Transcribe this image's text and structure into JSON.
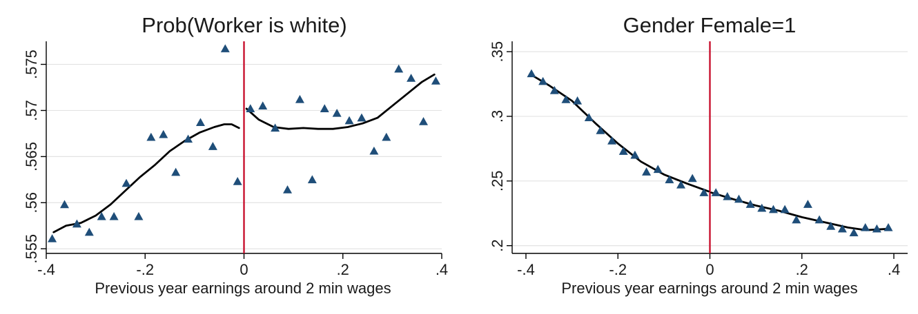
{
  "colors": {
    "marker": "#1f4e79",
    "fit_line": "#000000",
    "cutoff_line": "#c8102e",
    "grid": "#e3e3e3"
  },
  "chart_data": [
    {
      "type": "scatter",
      "title": "Prob(Worker is white)",
      "xlabel": "Previous year earnings around 2 min wages",
      "ylabel": "",
      "xlim": [
        -0.4,
        0.4
      ],
      "ylim": [
        0.5545,
        0.5775
      ],
      "xticks": [
        -0.4,
        -0.2,
        0,
        0.2,
        0.4
      ],
      "xtick_labels": [
        "-.4",
        "-.2",
        "0",
        ".2",
        ".4"
      ],
      "yticks": [
        0.555,
        0.56,
        0.565,
        0.57,
        0.575
      ],
      "ytick_labels": [
        ".555",
        ".56",
        ".565",
        ".57",
        ".575"
      ],
      "grid": true,
      "cutoff": 0,
      "marker": "triangle",
      "points": [
        {
          "x": -0.388,
          "y": 0.5561
        },
        {
          "x": -0.363,
          "y": 0.5598
        },
        {
          "x": -0.338,
          "y": 0.5577
        },
        {
          "x": -0.313,
          "y": 0.5568
        },
        {
          "x": -0.288,
          "y": 0.5585
        },
        {
          "x": -0.263,
          "y": 0.5585
        },
        {
          "x": -0.238,
          "y": 0.5621
        },
        {
          "x": -0.213,
          "y": 0.5585
        },
        {
          "x": -0.188,
          "y": 0.5671
        },
        {
          "x": -0.163,
          "y": 0.5674
        },
        {
          "x": -0.138,
          "y": 0.5633
        },
        {
          "x": -0.113,
          "y": 0.5669
        },
        {
          "x": -0.088,
          "y": 0.5687
        },
        {
          "x": -0.063,
          "y": 0.5661
        },
        {
          "x": -0.038,
          "y": 0.5767
        },
        {
          "x": -0.013,
          "y": 0.5623
        },
        {
          "x": 0.013,
          "y": 0.5702
        },
        {
          "x": 0.038,
          "y": 0.5705
        },
        {
          "x": 0.063,
          "y": 0.5681
        },
        {
          "x": 0.088,
          "y": 0.5614
        },
        {
          "x": 0.113,
          "y": 0.5712
        },
        {
          "x": 0.138,
          "y": 0.5625
        },
        {
          "x": 0.163,
          "y": 0.5702
        },
        {
          "x": 0.188,
          "y": 0.5697
        },
        {
          "x": 0.213,
          "y": 0.5689
        },
        {
          "x": 0.238,
          "y": 0.5692
        },
        {
          "x": 0.263,
          "y": 0.5656
        },
        {
          "x": 0.288,
          "y": 0.5671
        },
        {
          "x": 0.313,
          "y": 0.5745
        },
        {
          "x": 0.338,
          "y": 0.5735
        },
        {
          "x": 0.363,
          "y": 0.5688
        },
        {
          "x": 0.388,
          "y": 0.5732
        }
      ],
      "fit_left": [
        {
          "x": -0.385,
          "y": 0.5568
        },
        {
          "x": -0.36,
          "y": 0.5575
        },
        {
          "x": -0.33,
          "y": 0.5578
        },
        {
          "x": -0.3,
          "y": 0.5586
        },
        {
          "x": -0.27,
          "y": 0.5598
        },
        {
          "x": -0.24,
          "y": 0.5613
        },
        {
          "x": -0.21,
          "y": 0.5628
        },
        {
          "x": -0.18,
          "y": 0.5641
        },
        {
          "x": -0.15,
          "y": 0.5656
        },
        {
          "x": -0.12,
          "y": 0.5667
        },
        {
          "x": -0.09,
          "y": 0.5676
        },
        {
          "x": -0.06,
          "y": 0.5682
        },
        {
          "x": -0.04,
          "y": 0.5685
        },
        {
          "x": -0.025,
          "y": 0.5685
        },
        {
          "x": -0.01,
          "y": 0.5681
        }
      ],
      "fit_right": [
        {
          "x": 0.005,
          "y": 0.5702
        },
        {
          "x": 0.03,
          "y": 0.569
        },
        {
          "x": 0.06,
          "y": 0.5682
        },
        {
          "x": 0.09,
          "y": 0.568
        },
        {
          "x": 0.12,
          "y": 0.5681
        },
        {
          "x": 0.15,
          "y": 0.568
        },
        {
          "x": 0.18,
          "y": 0.568
        },
        {
          "x": 0.21,
          "y": 0.5682
        },
        {
          "x": 0.24,
          "y": 0.5686
        },
        {
          "x": 0.27,
          "y": 0.5692
        },
        {
          "x": 0.3,
          "y": 0.5705
        },
        {
          "x": 0.33,
          "y": 0.5718
        },
        {
          "x": 0.36,
          "y": 0.5731
        },
        {
          "x": 0.385,
          "y": 0.5739
        }
      ]
    },
    {
      "type": "scatter",
      "title": "Gender Female=1",
      "xlabel": "Previous year earnings around 2 min wages",
      "ylabel": "",
      "xlim": [
        -0.43,
        0.43
      ],
      "ylim": [
        0.194,
        0.358
      ],
      "xticks": [
        -0.4,
        -0.2,
        0,
        0.2,
        0.4
      ],
      "xtick_labels": [
        "-.4",
        "-.2",
        "0",
        ".2",
        ".4"
      ],
      "yticks": [
        0.2,
        0.25,
        0.3,
        0.35
      ],
      "ytick_labels": [
        ".2",
        ".25",
        ".3",
        ".35"
      ],
      "grid": true,
      "cutoff": 0,
      "marker": "triangle",
      "points": [
        {
          "x": -0.388,
          "y": 0.333
        },
        {
          "x": -0.363,
          "y": 0.327
        },
        {
          "x": -0.338,
          "y": 0.32
        },
        {
          "x": -0.313,
          "y": 0.313
        },
        {
          "x": -0.288,
          "y": 0.312
        },
        {
          "x": -0.263,
          "y": 0.299
        },
        {
          "x": -0.238,
          "y": 0.289
        },
        {
          "x": -0.213,
          "y": 0.281
        },
        {
          "x": -0.188,
          "y": 0.273
        },
        {
          "x": -0.163,
          "y": 0.27
        },
        {
          "x": -0.138,
          "y": 0.257
        },
        {
          "x": -0.113,
          "y": 0.259
        },
        {
          "x": -0.088,
          "y": 0.251
        },
        {
          "x": -0.063,
          "y": 0.247
        },
        {
          "x": -0.038,
          "y": 0.252
        },
        {
          "x": -0.013,
          "y": 0.241
        },
        {
          "x": 0.013,
          "y": 0.241
        },
        {
          "x": 0.038,
          "y": 0.238
        },
        {
          "x": 0.063,
          "y": 0.236
        },
        {
          "x": 0.088,
          "y": 0.232
        },
        {
          "x": 0.113,
          "y": 0.229
        },
        {
          "x": 0.138,
          "y": 0.228
        },
        {
          "x": 0.163,
          "y": 0.228
        },
        {
          "x": 0.188,
          "y": 0.22
        },
        {
          "x": 0.213,
          "y": 0.232
        },
        {
          "x": 0.238,
          "y": 0.22
        },
        {
          "x": 0.263,
          "y": 0.215
        },
        {
          "x": 0.288,
          "y": 0.213
        },
        {
          "x": 0.313,
          "y": 0.21
        },
        {
          "x": 0.338,
          "y": 0.214
        },
        {
          "x": 0.363,
          "y": 0.213
        },
        {
          "x": 0.388,
          "y": 0.214
        }
      ],
      "fit_left": [
        {
          "x": -0.388,
          "y": 0.332
        },
        {
          "x": -0.35,
          "y": 0.324
        },
        {
          "x": -0.3,
          "y": 0.312
        },
        {
          "x": -0.25,
          "y": 0.295
        },
        {
          "x": -0.2,
          "y": 0.279
        },
        {
          "x": -0.15,
          "y": 0.265
        },
        {
          "x": -0.1,
          "y": 0.255
        },
        {
          "x": -0.05,
          "y": 0.248
        },
        {
          "x": -0.003,
          "y": 0.242
        }
      ],
      "fit_right": [
        {
          "x": 0.003,
          "y": 0.241
        },
        {
          "x": 0.05,
          "y": 0.236
        },
        {
          "x": 0.1,
          "y": 0.231
        },
        {
          "x": 0.15,
          "y": 0.227
        },
        {
          "x": 0.2,
          "y": 0.222
        },
        {
          "x": 0.25,
          "y": 0.218
        },
        {
          "x": 0.3,
          "y": 0.214
        },
        {
          "x": 0.34,
          "y": 0.212
        },
        {
          "x": 0.388,
          "y": 0.213
        }
      ]
    }
  ]
}
